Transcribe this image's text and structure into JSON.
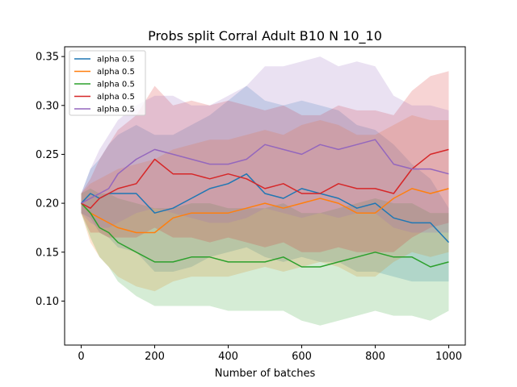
{
  "chart_data": {
    "type": "line",
    "title": "Probs split Corral Adult B10 N 10_10",
    "xlabel": "Number of batches",
    "ylabel": "",
    "xlim": [
      -45,
      1045
    ],
    "ylim": [
      0.055,
      0.36
    ],
    "xticks": [
      0,
      200,
      400,
      600,
      800,
      1000
    ],
    "xtick_labels": [
      "0",
      "200",
      "400",
      "600",
      "800",
      "1000"
    ],
    "yticks": [
      0.1,
      0.15,
      0.2,
      0.25,
      0.3,
      0.35
    ],
    "ytick_labels": [
      "0.10",
      "0.15",
      "0.20",
      "0.25",
      "0.30",
      "0.35"
    ],
    "grid": false,
    "legend_position": "top-left",
    "series": [
      {
        "name": "alpha 0.5",
        "color": "#1f77b4",
        "x": [
          0,
          25,
          50,
          75,
          100,
          150,
          200,
          250,
          300,
          350,
          400,
          450,
          500,
          550,
          600,
          650,
          700,
          750,
          800,
          850,
          900,
          950,
          1000
        ],
        "y": [
          0.2,
          0.21,
          0.205,
          0.21,
          0.21,
          0.21,
          0.19,
          0.195,
          0.205,
          0.215,
          0.22,
          0.23,
          0.21,
          0.205,
          0.215,
          0.21,
          0.205,
          0.195,
          0.2,
          0.185,
          0.18,
          0.18,
          0.16
        ],
        "upper": [
          0.21,
          0.235,
          0.245,
          0.26,
          0.27,
          0.28,
          0.27,
          0.27,
          0.28,
          0.29,
          0.305,
          0.32,
          0.305,
          0.3,
          0.305,
          0.3,
          0.295,
          0.28,
          0.275,
          0.26,
          0.24,
          0.225,
          0.195
        ],
        "lower": [
          0.19,
          0.185,
          0.17,
          0.165,
          0.155,
          0.15,
          0.13,
          0.13,
          0.135,
          0.145,
          0.15,
          0.155,
          0.145,
          0.14,
          0.145,
          0.14,
          0.14,
          0.13,
          0.13,
          0.125,
          0.12,
          0.12,
          0.12
        ]
      },
      {
        "name": "alpha 0.5",
        "color": "#ff7f0e",
        "x": [
          0,
          25,
          50,
          75,
          100,
          150,
          200,
          250,
          300,
          350,
          400,
          450,
          500,
          550,
          600,
          650,
          700,
          750,
          800,
          850,
          900,
          950,
          1000
        ],
        "y": [
          0.2,
          0.19,
          0.185,
          0.18,
          0.175,
          0.17,
          0.17,
          0.185,
          0.19,
          0.19,
          0.19,
          0.195,
          0.2,
          0.195,
          0.2,
          0.205,
          0.2,
          0.19,
          0.19,
          0.205,
          0.215,
          0.21,
          0.215
        ],
        "upper": [
          0.21,
          0.22,
          0.225,
          0.23,
          0.235,
          0.24,
          0.245,
          0.255,
          0.26,
          0.265,
          0.265,
          0.27,
          0.275,
          0.27,
          0.28,
          0.285,
          0.28,
          0.27,
          0.27,
          0.28,
          0.29,
          0.285,
          0.285
        ],
        "lower": [
          0.19,
          0.16,
          0.145,
          0.135,
          0.125,
          0.115,
          0.11,
          0.12,
          0.125,
          0.125,
          0.125,
          0.13,
          0.135,
          0.13,
          0.135,
          0.14,
          0.135,
          0.125,
          0.125,
          0.14,
          0.15,
          0.145,
          0.15
        ]
      },
      {
        "name": "alpha 0.5",
        "color": "#2ca02c",
        "x": [
          0,
          25,
          50,
          75,
          100,
          150,
          200,
          250,
          300,
          350,
          400,
          450,
          500,
          550,
          600,
          650,
          700,
          750,
          800,
          850,
          900,
          950,
          1000
        ],
        "y": [
          0.2,
          0.19,
          0.175,
          0.17,
          0.16,
          0.15,
          0.14,
          0.14,
          0.145,
          0.145,
          0.14,
          0.14,
          0.14,
          0.145,
          0.135,
          0.135,
          0.14,
          0.145,
          0.15,
          0.145,
          0.145,
          0.135,
          0.14
        ],
        "upper": [
          0.21,
          0.215,
          0.21,
          0.21,
          0.205,
          0.2,
          0.195,
          0.195,
          0.2,
          0.2,
          0.195,
          0.195,
          0.195,
          0.2,
          0.19,
          0.19,
          0.195,
          0.2,
          0.205,
          0.2,
          0.2,
          0.19,
          0.19
        ],
        "lower": [
          0.19,
          0.165,
          0.145,
          0.135,
          0.12,
          0.105,
          0.095,
          0.095,
          0.095,
          0.095,
          0.09,
          0.09,
          0.09,
          0.09,
          0.08,
          0.075,
          0.08,
          0.085,
          0.09,
          0.085,
          0.085,
          0.08,
          0.09
        ]
      },
      {
        "name": "alpha 0.5",
        "color": "#d62728",
        "x": [
          0,
          25,
          50,
          75,
          100,
          150,
          200,
          250,
          300,
          350,
          400,
          450,
          500,
          550,
          600,
          650,
          700,
          750,
          800,
          850,
          900,
          950,
          1000
        ],
        "y": [
          0.2,
          0.195,
          0.205,
          0.21,
          0.215,
          0.22,
          0.245,
          0.23,
          0.23,
          0.225,
          0.23,
          0.225,
          0.215,
          0.22,
          0.21,
          0.21,
          0.22,
          0.215,
          0.215,
          0.21,
          0.235,
          0.25,
          0.255
        ],
        "upper": [
          0.21,
          0.225,
          0.245,
          0.26,
          0.275,
          0.29,
          0.32,
          0.3,
          0.305,
          0.3,
          0.305,
          0.3,
          0.295,
          0.3,
          0.29,
          0.29,
          0.3,
          0.295,
          0.295,
          0.29,
          0.315,
          0.33,
          0.335
        ],
        "lower": [
          0.19,
          0.17,
          0.17,
          0.165,
          0.165,
          0.165,
          0.175,
          0.165,
          0.165,
          0.16,
          0.165,
          0.16,
          0.155,
          0.16,
          0.15,
          0.15,
          0.155,
          0.15,
          0.15,
          0.15,
          0.165,
          0.175,
          0.18
        ]
      },
      {
        "name": "alpha 0.5",
        "color": "#9467bd",
        "x": [
          0,
          25,
          50,
          75,
          100,
          150,
          200,
          250,
          300,
          350,
          400,
          450,
          500,
          550,
          600,
          650,
          700,
          750,
          800,
          850,
          900,
          950,
          1000
        ],
        "y": [
          0.2,
          0.205,
          0.21,
          0.215,
          0.23,
          0.245,
          0.255,
          0.25,
          0.245,
          0.24,
          0.24,
          0.245,
          0.26,
          0.255,
          0.25,
          0.26,
          0.255,
          0.26,
          0.265,
          0.24,
          0.235,
          0.235,
          0.23
        ],
        "upper": [
          0.21,
          0.235,
          0.255,
          0.27,
          0.285,
          0.3,
          0.31,
          0.31,
          0.3,
          0.3,
          0.31,
          0.32,
          0.34,
          0.34,
          0.345,
          0.35,
          0.34,
          0.345,
          0.34,
          0.31,
          0.3,
          0.3,
          0.295
        ],
        "lower": [
          0.19,
          0.18,
          0.175,
          0.175,
          0.18,
          0.19,
          0.195,
          0.19,
          0.185,
          0.18,
          0.18,
          0.185,
          0.195,
          0.19,
          0.185,
          0.19,
          0.185,
          0.19,
          0.19,
          0.175,
          0.17,
          0.17,
          0.17
        ]
      }
    ]
  }
}
